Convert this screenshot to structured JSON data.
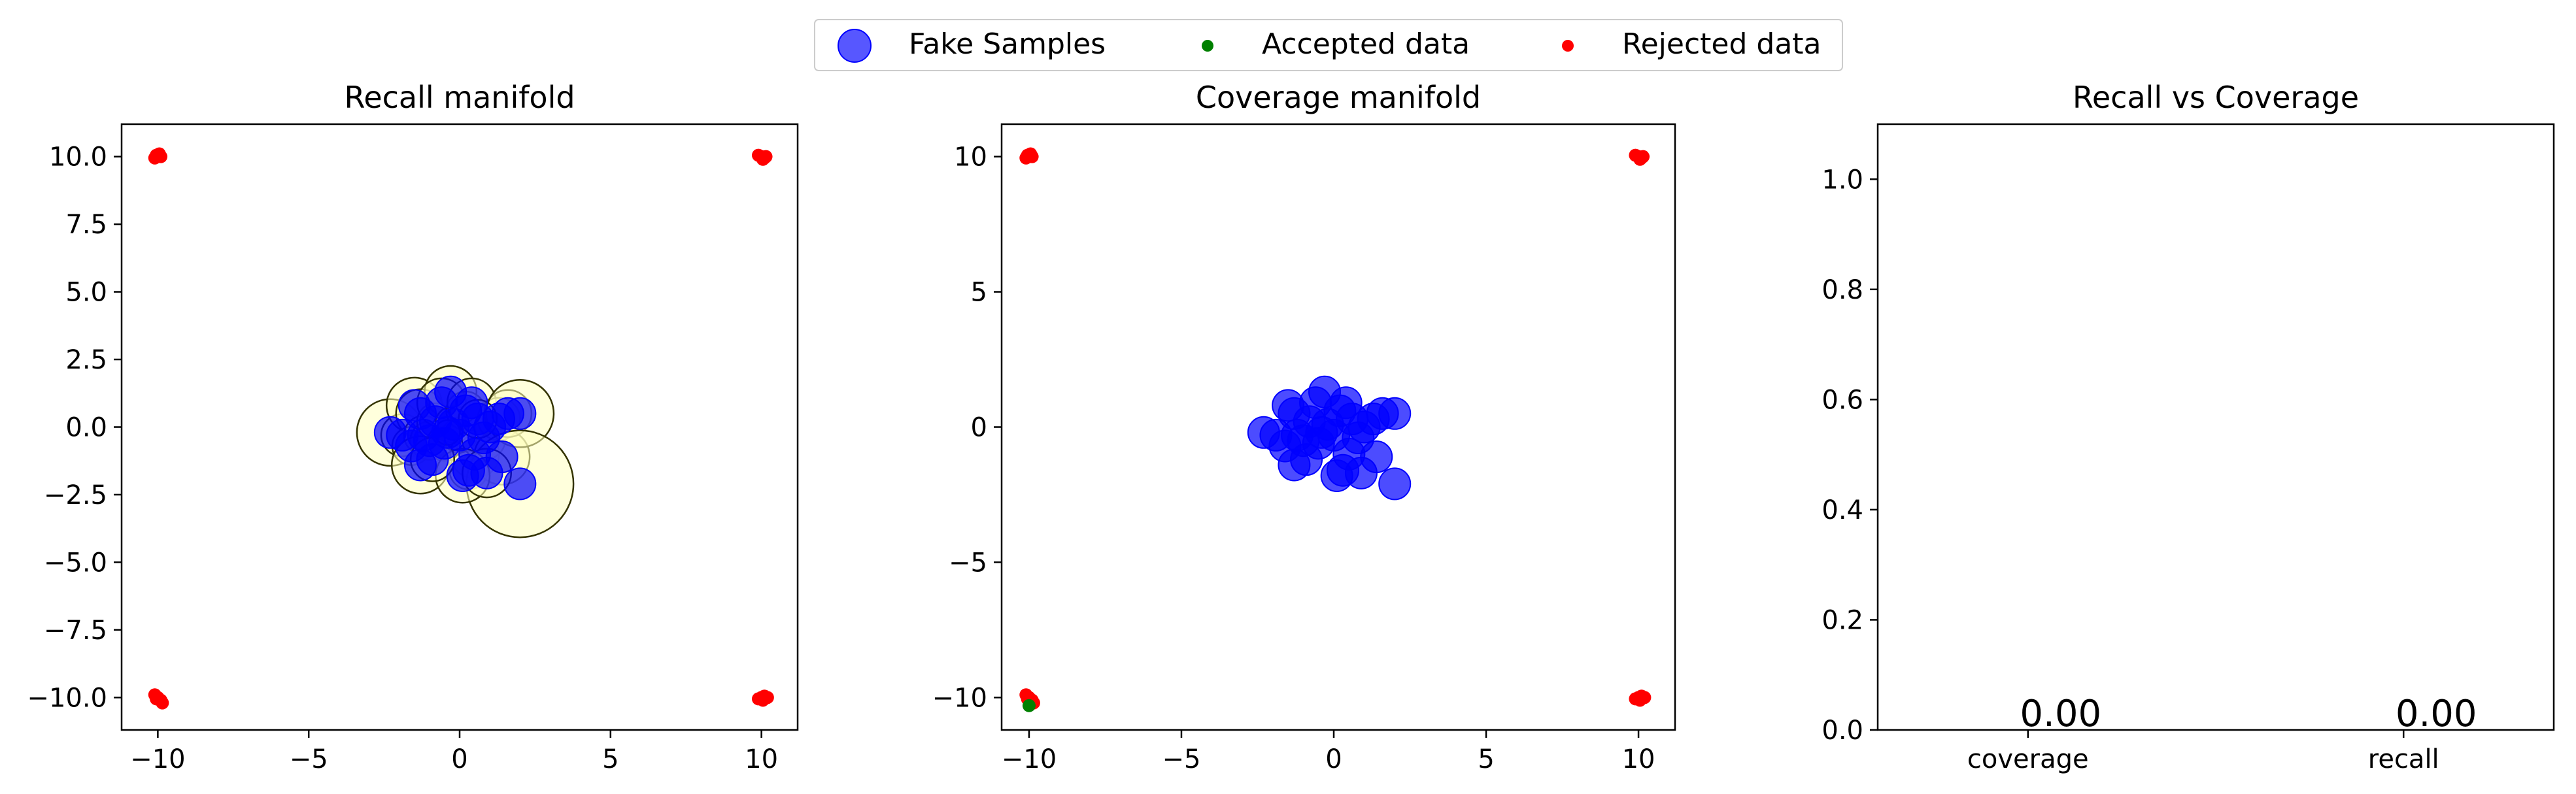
{
  "legend": {
    "placement": "top-center",
    "entries": [
      {
        "label": "Fake Samples",
        "marker": "large-circle",
        "color": "#1f1fff"
      },
      {
        "label": "Accepted data",
        "marker": "small-dot",
        "color": "#008000"
      },
      {
        "label": "Rejected data",
        "marker": "small-dot",
        "color": "#ff0000"
      }
    ]
  },
  "colors": {
    "fake": "#0000ff",
    "rejected": "#ff0000",
    "accepted": "#008000",
    "manifold_fill": "#ffffc0",
    "manifold_edge": "#333300"
  },
  "chart_data": [
    {
      "type": "scatter",
      "title": "Recall manifold",
      "xlabel": "",
      "ylabel": "",
      "xlim": [
        -11.2,
        11.2
      ],
      "ylim": [
        -11.2,
        11.2
      ],
      "xticks": [
        -10,
        -5,
        0,
        5,
        10
      ],
      "xtick_labels": [
        "−10",
        "−5",
        "0",
        "5",
        "10"
      ],
      "yticks": [
        10,
        7.5,
        5,
        2.5,
        0,
        -2.5,
        -5,
        -7.5,
        -10
      ],
      "ytick_labels": [
        "10.0",
        "7.5",
        "5.0",
        "2.5",
        "0.0",
        "−2.5",
        "−5.0",
        "−7.5",
        "−10.0"
      ],
      "grid": false,
      "manifold_radii_shown": true,
      "series": [
        {
          "name": "Fake Samples",
          "points": [
            [
              -2.3,
              -0.2
            ],
            [
              -1.9,
              -0.3
            ],
            [
              -1.5,
              0.8
            ],
            [
              -1.3,
              0.5
            ],
            [
              -1.6,
              -0.7
            ],
            [
              -1.2,
              -0.3
            ],
            [
              -1.0,
              -0.5
            ],
            [
              -0.8,
              0.2
            ],
            [
              -0.5,
              -0.6
            ],
            [
              -0.3,
              1.3
            ],
            [
              -0.6,
              0.9
            ],
            [
              -0.2,
              0.1
            ],
            [
              0.0,
              -0.3
            ],
            [
              0.2,
              0.6
            ],
            [
              0.4,
              0.9
            ],
            [
              0.5,
              -1.0
            ],
            [
              0.3,
              -1.6
            ],
            [
              0.8,
              -0.4
            ],
            [
              1.0,
              0.0
            ],
            [
              1.3,
              0.3
            ],
            [
              1.4,
              -1.1
            ],
            [
              1.6,
              0.5
            ],
            [
              2.0,
              0.5
            ],
            [
              2.0,
              -2.1
            ],
            [
              -1.3,
              -1.4
            ],
            [
              0.1,
              -1.8
            ],
            [
              -0.9,
              -1.2
            ],
            [
              0.6,
              0.3
            ],
            [
              -0.4,
              -0.2
            ],
            [
              0.9,
              -1.7
            ]
          ]
        },
        {
          "name": "Accepted data",
          "points": []
        },
        {
          "name": "Rejected data",
          "points": [
            [
              -10,
              10.0
            ],
            [
              -9.95,
              10.1
            ],
            [
              -10.1,
              9.95
            ],
            [
              -10.05,
              10.05
            ],
            [
              -9.9,
              10.0
            ],
            [
              10.0,
              10.0
            ],
            [
              10.1,
              9.95
            ],
            [
              9.9,
              10.05
            ],
            [
              10.05,
              9.9
            ],
            [
              10.15,
              10.0
            ],
            [
              -10.0,
              -10.0
            ],
            [
              -9.9,
              -10.1
            ],
            [
              -10.1,
              -9.9
            ],
            [
              -9.85,
              -10.2
            ],
            [
              -10.05,
              -10.05
            ],
            [
              10.0,
              -10.0
            ],
            [
              10.1,
              -9.95
            ],
            [
              9.9,
              -10.05
            ],
            [
              10.2,
              -10.0
            ],
            [
              10.05,
              -10.1
            ]
          ]
        }
      ]
    },
    {
      "type": "scatter",
      "title": "Coverage manifold",
      "xlabel": "",
      "ylabel": "",
      "xlim": [
        -10.9,
        11.2
      ],
      "ylim": [
        -11.2,
        11.2
      ],
      "xticks": [
        -10,
        -5,
        0,
        5,
        10
      ],
      "xtick_labels": [
        "−10",
        "−5",
        "0",
        "5",
        "10"
      ],
      "yticks": [
        10,
        5,
        0,
        -5,
        -10
      ],
      "ytick_labels": [
        "10",
        "5",
        "0",
        "−5",
        "−10"
      ],
      "grid": false,
      "manifold_radii_shown": false,
      "series": [
        {
          "name": "Fake Samples",
          "points": [
            [
              -2.3,
              -0.2
            ],
            [
              -1.9,
              -0.3
            ],
            [
              -1.5,
              0.8
            ],
            [
              -1.3,
              0.5
            ],
            [
              -1.6,
              -0.7
            ],
            [
              -1.2,
              -0.3
            ],
            [
              -1.0,
              -0.5
            ],
            [
              -0.8,
              0.2
            ],
            [
              -0.5,
              -0.6
            ],
            [
              -0.3,
              1.3
            ],
            [
              -0.6,
              0.9
            ],
            [
              -0.2,
              0.1
            ],
            [
              0.0,
              -0.3
            ],
            [
              0.2,
              0.6
            ],
            [
              0.4,
              0.9
            ],
            [
              0.5,
              -1.0
            ],
            [
              0.3,
              -1.6
            ],
            [
              0.8,
              -0.4
            ],
            [
              1.0,
              0.0
            ],
            [
              1.3,
              0.3
            ],
            [
              1.4,
              -1.1
            ],
            [
              1.6,
              0.5
            ],
            [
              2.0,
              0.5
            ],
            [
              2.0,
              -2.1
            ],
            [
              -1.3,
              -1.4
            ],
            [
              0.1,
              -1.8
            ],
            [
              -0.9,
              -1.2
            ],
            [
              0.6,
              0.3
            ],
            [
              -0.4,
              -0.2
            ],
            [
              0.9,
              -1.7
            ]
          ]
        },
        {
          "name": "Accepted data",
          "points": [
            [
              -10.0,
              -10.3
            ]
          ]
        },
        {
          "name": "Rejected data",
          "points": [
            [
              -10,
              10.0
            ],
            [
              -9.95,
              10.1
            ],
            [
              -10.1,
              9.95
            ],
            [
              -10.05,
              10.05
            ],
            [
              -9.9,
              10.0
            ],
            [
              10.0,
              10.0
            ],
            [
              10.1,
              9.95
            ],
            [
              9.9,
              10.05
            ],
            [
              10.05,
              9.9
            ],
            [
              10.15,
              10.0
            ],
            [
              -10.0,
              -10.0
            ],
            [
              -9.9,
              -10.1
            ],
            [
              -10.1,
              -9.9
            ],
            [
              -9.85,
              -10.2
            ],
            [
              -10.05,
              -10.05
            ],
            [
              10.0,
              -10.0
            ],
            [
              10.1,
              -9.95
            ],
            [
              9.9,
              -10.05
            ],
            [
              10.2,
              -10.0
            ],
            [
              10.05,
              -10.1
            ]
          ]
        }
      ]
    },
    {
      "type": "bar",
      "title": "Recall vs Coverage",
      "xlabel": "",
      "ylabel": "",
      "categories": [
        "coverage",
        "recall"
      ],
      "values": [
        0.0,
        0.0
      ],
      "value_labels": [
        "0.00",
        "0.00"
      ],
      "xlim": [
        -0.4,
        1.4
      ],
      "ylim": [
        0,
        1.1
      ],
      "yticks": [
        0.0,
        0.2,
        0.4,
        0.6,
        0.8,
        1.0
      ],
      "ytick_labels": [
        "0.0",
        "0.2",
        "0.4",
        "0.6",
        "0.8",
        "1.0"
      ],
      "grid": false
    }
  ]
}
